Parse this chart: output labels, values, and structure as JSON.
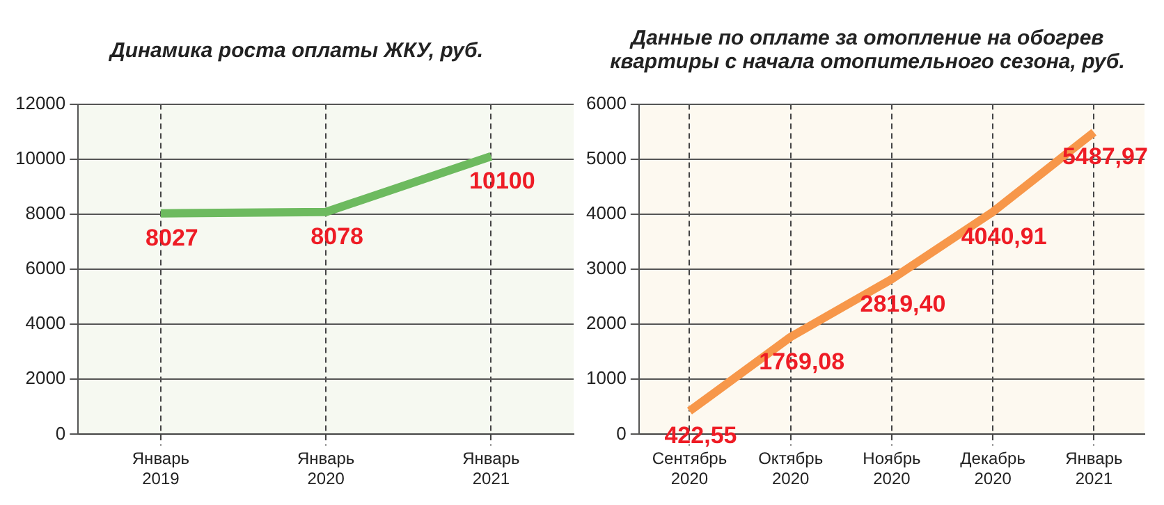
{
  "chart_data": [
    {
      "type": "line",
      "title": "Динамика роста оплаты ЖКУ, руб.",
      "categories": [
        "Январь 2019",
        "Январь 2020",
        "Январь 2021"
      ],
      "series": [
        {
          "color": "#6dba5f",
          "values": [
            8027,
            8078,
            10100
          ],
          "value_labels": [
            "8027",
            "8078",
            "10100"
          ]
        }
      ],
      "ylim": [
        0,
        12000
      ],
      "yticks": [
        0,
        2000,
        4000,
        6000,
        8000,
        10000,
        12000
      ],
      "grid": true,
      "legend": false
    },
    {
      "type": "line",
      "title": "Данные по оплате за отопление на обогрев квартиры с начала отопительного сезона, руб.",
      "categories": [
        "Сентябрь 2020",
        "Октябрь 2020",
        "Ноябрь 2020",
        "Декабрь 2020",
        "Январь 2021"
      ],
      "series": [
        {
          "color": "#f7974a",
          "values": [
            422.55,
            1769.08,
            2819.4,
            4040.91,
            5487.97
          ],
          "value_labels": [
            "422,55",
            "1769,08",
            "2819,40",
            "4040,91",
            "5487,97"
          ]
        }
      ],
      "ylim": [
        0,
        6000
      ],
      "yticks": [
        0,
        1000,
        2000,
        3000,
        4000,
        5000,
        6000
      ],
      "grid": true,
      "legend": false
    }
  ]
}
